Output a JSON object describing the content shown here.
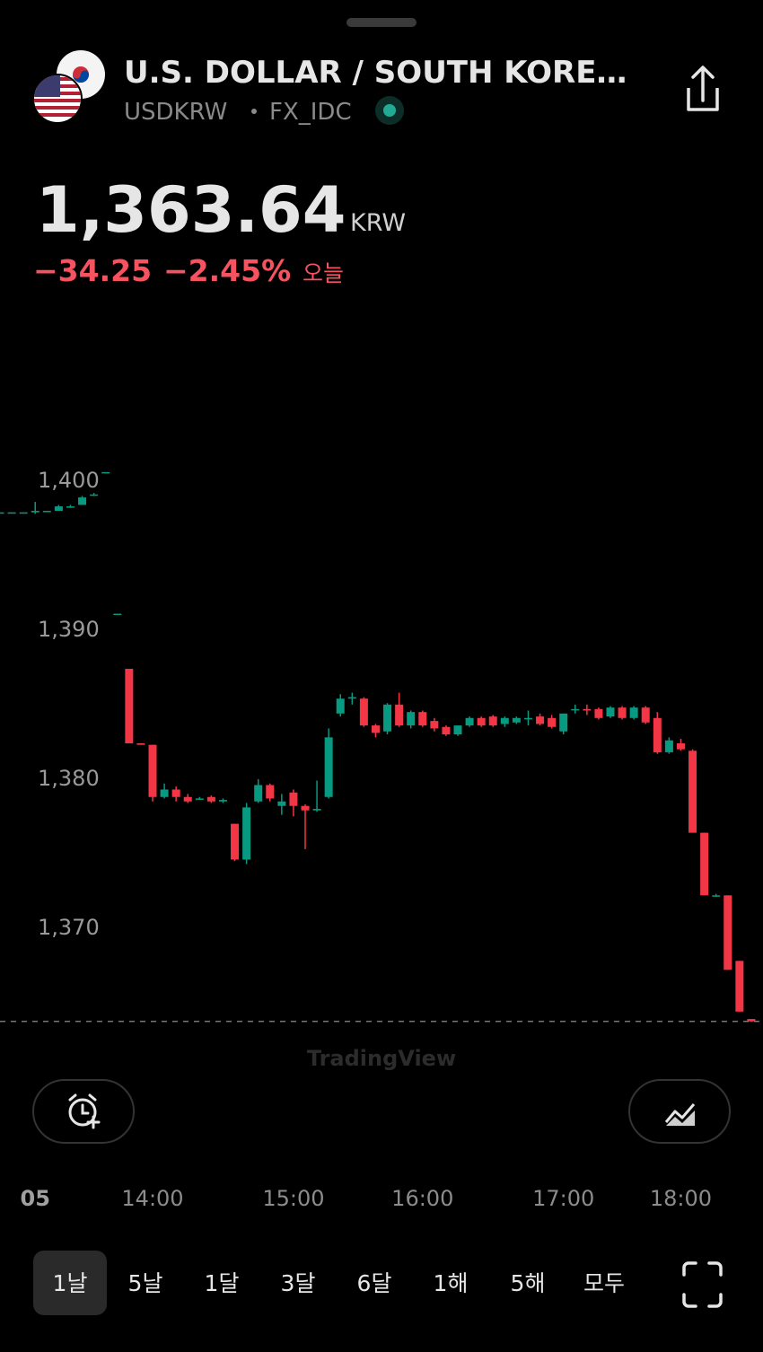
{
  "header": {
    "title": "U.S. DOLLAR / SOUTH KORE…",
    "symbol": "USDKRW",
    "exchange": "FX_IDC"
  },
  "quote": {
    "price": "1,363.64",
    "currency": "KRW",
    "change": "−34.25",
    "change_percent": "−2.45%",
    "period": "오늘"
  },
  "watermark": "TradingView",
  "ranges": [
    "1날",
    "5날",
    "1달",
    "3달",
    "6달",
    "1해",
    "5해",
    "모두"
  ],
  "chart_data": {
    "type": "candlestick",
    "up_color": "#089981",
    "down_color": "#f23645",
    "grid": false,
    "price_line": 1363.64,
    "xlim": [
      0,
      65
    ],
    "xticks": [
      {
        "value": 3,
        "label": "05"
      },
      {
        "value": 13,
        "label": "14:00"
      },
      {
        "value": 25,
        "label": "15:00"
      },
      {
        "value": 36,
        "label": "16:00"
      },
      {
        "value": 48,
        "label": "17:00"
      },
      {
        "value": 58,
        "label": "18:00"
      }
    ],
    "ylim": [
      1362.3,
      1412.3
    ],
    "yticks": [
      {
        "value": 1400,
        "label": "1,400"
      },
      {
        "value": 1390,
        "label": "1,390"
      },
      {
        "value": 1380,
        "label": "1,380"
      },
      {
        "value": 1370,
        "label": "1,370"
      }
    ],
    "open": [
      1397.8,
      1397.8,
      1397.8,
      1397.8,
      1397.9,
      1397.9,
      1398.2,
      1398.3,
      1399,
      1400.5,
      1391.0,
      1387.3,
      1382.3,
      1382.2,
      1378.7,
      1379.2,
      1378.7,
      1378.6,
      1378.7,
      1378.4,
      1376.9,
      1374.5,
      1378.4,
      1379.5,
      1378.1,
      1379.0,
      1378.1,
      1377.8,
      1378.7,
      1384.3,
      1385.3,
      1385.3,
      1383.5,
      1383.1,
      1384.9,
      1383.5,
      1384.4,
      1383.8,
      1383.4,
      1382.9,
      1383.5,
      1384.0,
      1384.1,
      1383.6,
      1383.7,
      1384.0,
      1384.1,
      1384.0,
      1383.1,
      1384.6,
      1384.6,
      1384.6,
      1384.1,
      1384.7,
      1384.0,
      1384.7,
      1384.0,
      1381.7,
      1382.3,
      1381.8,
      1376.3,
      1372.1,
      1372.1,
      1367.7,
      1363.8
    ],
    "high": [
      1397.8,
      1397.8,
      1397.8,
      1398.5,
      1397.9,
      1398.3,
      1398.3,
      1398.9,
      1399.1,
      1400.5,
      1391.0,
      1387.3,
      1382.3,
      1382.2,
      1379.6,
      1379.4,
      1378.9,
      1378.7,
      1378.8,
      1378.6,
      1376.9,
      1378.3,
      1379.9,
      1379.6,
      1378.9,
      1379.2,
      1378.2,
      1379.8,
      1383.3,
      1385.6,
      1385.7,
      1385.4,
      1383.6,
      1385.0,
      1385.7,
      1384.5,
      1384.5,
      1384.0,
      1383.5,
      1383.5,
      1384.1,
      1384.1,
      1384.2,
      1384.1,
      1384.1,
      1384.5,
      1384.3,
      1384.2,
      1384.3,
      1384.9,
      1384.9,
      1384.7,
      1384.8,
      1384.8,
      1384.8,
      1384.8,
      1384.4,
      1382.7,
      1382.6,
      1381.9,
      1376.3,
      1372.2,
      1372.1,
      1367.7,
      1363.8
    ],
    "low": [
      1397.8,
      1397.8,
      1397.8,
      1397.7,
      1397.9,
      1397.9,
      1398.1,
      1398.3,
      1398.9,
      1400.5,
      1391.0,
      1382.3,
      1382.2,
      1378.4,
      1378.6,
      1378.4,
      1378.3,
      1378.5,
      1378.3,
      1378.3,
      1374.4,
      1374.2,
      1378.3,
      1378.4,
      1377.5,
      1377.4,
      1375.2,
      1377.7,
      1378.6,
      1384.1,
      1384.9,
      1383.4,
      1382.7,
      1382.9,
      1383.4,
      1383.3,
      1383.4,
      1383.1,
      1382.8,
      1382.8,
      1383.4,
      1383.4,
      1383.4,
      1383.4,
      1383.6,
      1383.5,
      1383.5,
      1383.3,
      1382.9,
      1384.3,
      1384.2,
      1383.9,
      1384.0,
      1383.9,
      1383.9,
      1383.6,
      1381.6,
      1381.6,
      1381.8,
      1376.3,
      1372.1,
      1372.0,
      1367.1,
      1364.3,
      1363.6
    ],
    "close": [
      1397.8,
      1397.8,
      1397.8,
      1397.9,
      1397.9,
      1398.2,
      1398.2,
      1398.8,
      1399,
      1400.5,
      1391.0,
      1382.3,
      1382.2,
      1378.7,
      1379.2,
      1378.7,
      1378.4,
      1378.6,
      1378.4,
      1378.5,
      1374.5,
      1378.0,
      1379.5,
      1378.6,
      1378.4,
      1378.1,
      1377.8,
      1377.9,
      1382.7,
      1385.3,
      1385.4,
      1383.5,
      1383.0,
      1384.9,
      1383.5,
      1384.4,
      1383.5,
      1383.3,
      1382.9,
      1383.5,
      1384.0,
      1383.5,
      1383.5,
      1384.0,
      1384.0,
      1384.0,
      1383.6,
      1383.4,
      1384.3,
      1384.6,
      1384.5,
      1384.0,
      1384.7,
      1384.0,
      1384.7,
      1383.7,
      1381.7,
      1382.5,
      1381.9,
      1376.3,
      1372.1,
      1372.1,
      1367.1,
      1364.3,
      1363.64
    ]
  }
}
